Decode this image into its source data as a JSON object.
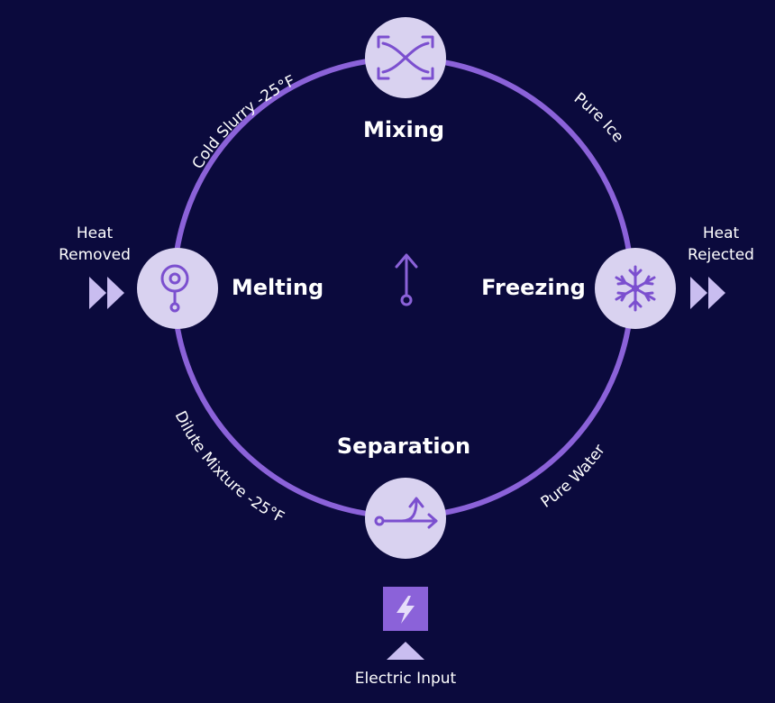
{
  "nodes": {
    "mixing": "Mixing",
    "freezing": "Freezing",
    "separation": "Separation",
    "melting": "Melting"
  },
  "arcs": {
    "top_left": "Cold Slurry -25°F",
    "top_right": "Pure Ice",
    "bottom_left": "Dilute Mixture -25°F",
    "bottom_right": "Pure Water"
  },
  "sides": {
    "left_line1": "Heat",
    "left_line2": "Removed",
    "right_line1": "Heat",
    "right_line2": "Rejected",
    "bottom": "Electric Input"
  },
  "colors": {
    "background": "#0b0a3d",
    "ring": "#8b62d9",
    "node_fill": "#d9d2f0",
    "icon": "#7b4fcf",
    "arrow_marker": "#c9bdf0"
  },
  "icons": {
    "mixing": "crossing-arrows-icon",
    "freezing": "snowflake-icon",
    "separation": "split-arrow-icon",
    "melting": "droplet-pin-icon",
    "center": "upward-arrow-icon",
    "electric": "lightning-bolt-icon"
  }
}
